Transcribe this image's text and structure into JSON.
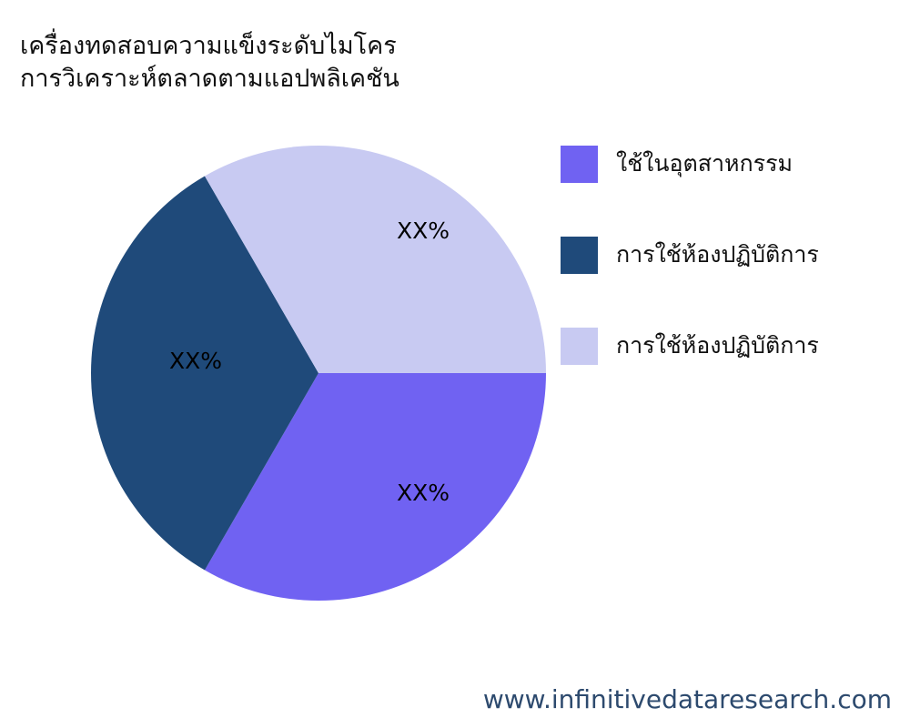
{
  "chart_data": {
    "type": "pie",
    "title": [
      "เครื่องทดสอบความแข็งระดับไมโคร",
      "การวิเคราะห์ตลาดตามแอปพลิเคชัน"
    ],
    "categories": [
      "ใช้ในอุตสาหกรรม",
      "การใช้ห้องปฏิบัติการ",
      "การใช้ห้องปฏิบัติการ"
    ],
    "values": [
      33.3,
      33.3,
      33.3
    ],
    "data_labels": [
      "XX%",
      "XX%",
      "XX%"
    ],
    "colors": [
      "#7062f2",
      "#1f4a7a",
      "#c8caf2"
    ],
    "start_angle_deg": 0,
    "direction": "clockwise",
    "legend_placement": "right"
  },
  "watermark": "www.infinitivedataresearch.com"
}
